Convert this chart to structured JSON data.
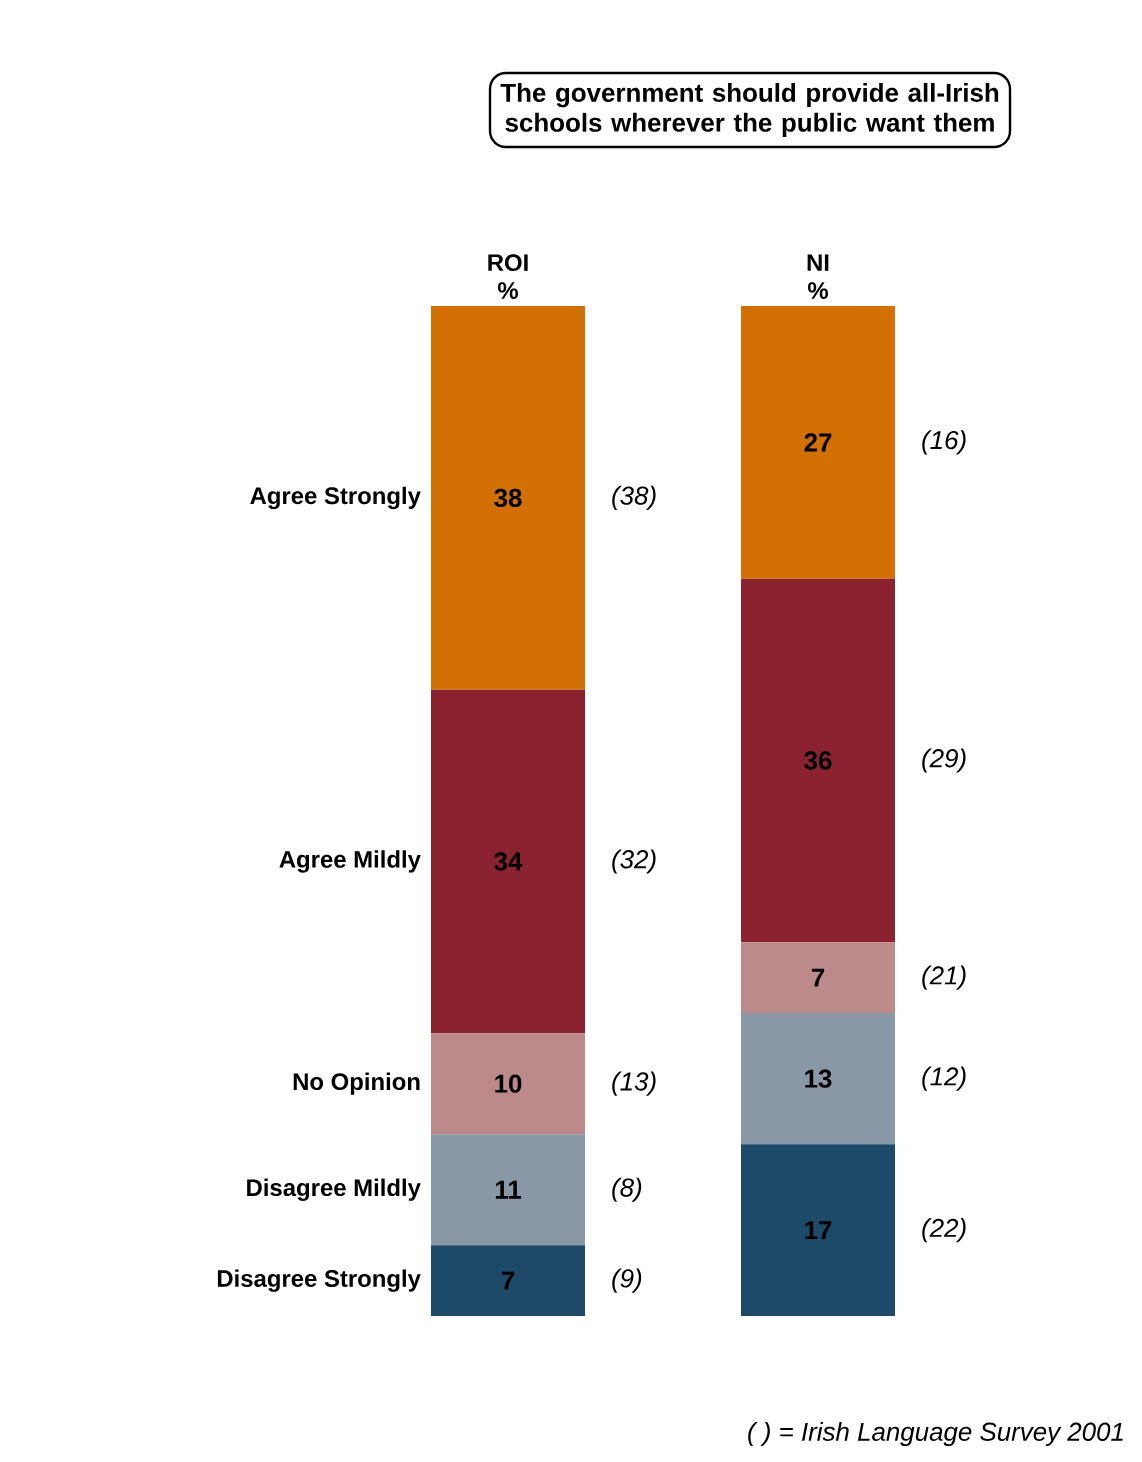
{
  "chart_data": {
    "type": "bar",
    "stacked": true,
    "title": "The government should provide all-Irish schools wherever the public want them",
    "categories": [
      "ROI %",
      "NI %"
    ],
    "data_labels": true,
    "series": [
      {
        "name": "Disagree Strongly",
        "color": "#1c4a68",
        "values": [
          7,
          17
        ]
      },
      {
        "name": "Disagree Mildly",
        "color": "#8a97a6",
        "values": [
          11,
          13
        ]
      },
      {
        "name": "No Opinion",
        "color": "#bd8a8b",
        "values": [
          10,
          7
        ]
      },
      {
        "name": "Agree Mildly",
        "color": "#8b2230",
        "values": [
          34,
          36
        ]
      },
      {
        "name": "Agree Strongly",
        "color": "#d27006",
        "values": [
          38,
          27
        ]
      }
    ],
    "annotations": [
      "(38)",
      "(32)",
      "(13)",
      "(8)",
      "(9)",
      "(16)",
      "(29)",
      "(21)",
      "(12)",
      "(22)",
      "( ) = Irish Language Survey 2001"
    ]
  }
}
